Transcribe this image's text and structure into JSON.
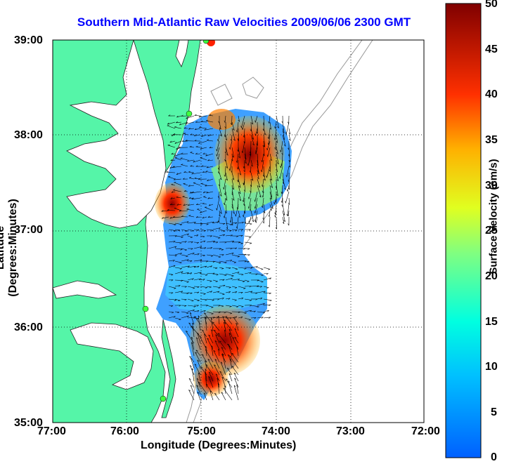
{
  "title": "Southern Mid-Atlantic Raw Velocities 2009/06/06 2300 GMT",
  "x_axis": {
    "label": "Longitude (Degrees:Minutes)",
    "ticks": [
      "77:00",
      "76:00",
      "75:00",
      "74:00",
      "73:00",
      "72:00"
    ]
  },
  "y_axis": {
    "label": "Latitude (Degrees:Minutes)",
    "ticks": [
      "39:00",
      "38:00",
      "37:00",
      "36:00",
      "35:00"
    ]
  },
  "colorbar": {
    "label": "Surface Velocity (cm/s)",
    "ticks": [
      "50",
      "45",
      "40",
      "35",
      "30",
      "25",
      "20",
      "15",
      "10",
      "5",
      "0"
    ],
    "range": [
      0,
      50
    ]
  },
  "colors": {
    "title": "#0000ff",
    "land": "#55f5a8",
    "coast": "#333333",
    "bathymetry": "#999999"
  }
}
